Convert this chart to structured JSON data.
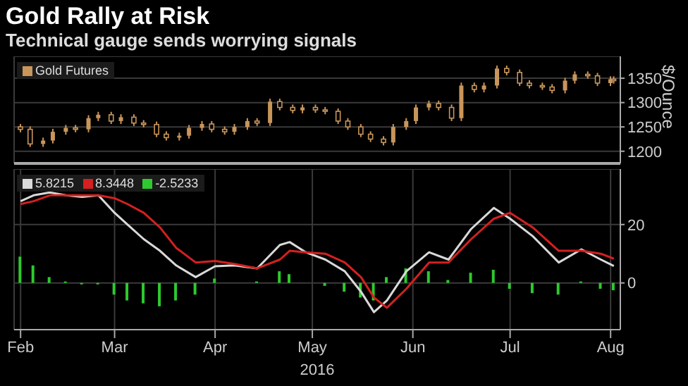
{
  "chart_data": [
    {
      "type": "candlestick",
      "title": "Gold Rally at Risk",
      "subtitle": "Technical gauge sends worrying signals",
      "ylabel": "$/Ounce",
      "x": [
        "2016-02-01",
        "2016-02-04",
        "2016-02-08",
        "2016-02-11",
        "2016-02-15",
        "2016-02-18",
        "2016-02-22",
        "2016-02-25",
        "2016-02-29",
        "2016-03-03",
        "2016-03-07",
        "2016-03-10",
        "2016-03-14",
        "2016-03-17",
        "2016-03-21",
        "2016-03-24",
        "2016-03-28",
        "2016-03-31",
        "2016-04-04",
        "2016-04-07",
        "2016-04-11",
        "2016-04-14",
        "2016-04-18",
        "2016-04-21",
        "2016-04-25",
        "2016-04-28",
        "2016-05-02",
        "2016-05-05",
        "2016-05-09",
        "2016-05-12",
        "2016-05-16",
        "2016-05-19",
        "2016-05-23",
        "2016-05-26",
        "2016-05-30",
        "2016-06-02",
        "2016-06-06",
        "2016-06-09",
        "2016-06-13",
        "2016-06-16",
        "2016-06-20",
        "2016-06-23",
        "2016-06-27",
        "2016-06-30",
        "2016-07-04",
        "2016-07-07",
        "2016-07-11",
        "2016-07-14",
        "2016-07-18",
        "2016-07-21",
        "2016-07-25",
        "2016-07-28",
        "2016-08-01",
        "2016-08-02"
      ],
      "series": [
        {
          "name": "Gold Futures",
          "color": "#c8955a",
          "ohlc": [
            [
              1250,
              1256,
              1239,
              1245
            ],
            [
              1245,
              1251,
              1209,
              1215
            ],
            [
              1215,
              1228,
              1209,
              1222
            ],
            [
              1222,
              1246,
              1216,
              1240
            ],
            [
              1240,
              1254,
              1234,
              1248
            ],
            [
              1248,
              1254,
              1239,
              1245
            ],
            [
              1245,
              1274,
              1239,
              1268
            ],
            [
              1268,
              1281,
              1262,
              1275
            ],
            [
              1275,
              1281,
              1256,
              1262
            ],
            [
              1262,
              1276,
              1256,
              1270
            ],
            [
              1270,
              1276,
              1252,
              1258
            ],
            [
              1258,
              1264,
              1249,
              1255
            ],
            [
              1255,
              1261,
              1229,
              1235
            ],
            [
              1235,
              1241,
              1222,
              1228
            ],
            [
              1228,
              1238,
              1222,
              1232
            ],
            [
              1232,
              1254,
              1226,
              1248
            ],
            [
              1248,
              1262,
              1242,
              1256
            ],
            [
              1256,
              1262,
              1239,
              1245
            ],
            [
              1245,
              1251,
              1234,
              1240
            ],
            [
              1240,
              1256,
              1234,
              1250
            ],
            [
              1250,
              1268,
              1244,
              1262
            ],
            [
              1262,
              1268,
              1252,
              1258
            ],
            [
              1258,
              1308,
              1252,
              1302
            ],
            [
              1302,
              1308,
              1284,
              1290
            ],
            [
              1290,
              1296,
              1278,
              1284
            ],
            [
              1284,
              1296,
              1278,
              1290
            ],
            [
              1290,
              1296,
              1279,
              1285
            ],
            [
              1285,
              1291,
              1276,
              1282
            ],
            [
              1282,
              1288,
              1256,
              1262
            ],
            [
              1262,
              1268,
              1244,
              1250
            ],
            [
              1250,
              1256,
              1229,
              1235
            ],
            [
              1235,
              1241,
              1219,
              1225
            ],
            [
              1225,
              1231,
              1212,
              1218
            ],
            [
              1218,
              1256,
              1212,
              1250
            ],
            [
              1250,
              1268,
              1244,
              1262
            ],
            [
              1262,
              1296,
              1256,
              1290
            ],
            [
              1290,
              1304,
              1284,
              1298
            ],
            [
              1298,
              1304,
              1284,
              1290
            ],
            [
              1290,
              1296,
              1262,
              1268
            ],
            [
              1268,
              1341,
              1262,
              1335
            ],
            [
              1335,
              1341,
              1321,
              1327
            ],
            [
              1327,
              1341,
              1321,
              1335
            ],
            [
              1335,
              1376,
              1329,
              1370
            ],
            [
              1370,
              1376,
              1356,
              1362
            ],
            [
              1362,
              1368,
              1334,
              1340
            ],
            [
              1340,
              1346,
              1329,
              1335
            ],
            [
              1335,
              1341,
              1326,
              1332
            ],
            [
              1332,
              1338,
              1319,
              1325
            ],
            [
              1325,
              1351,
              1319,
              1345
            ],
            [
              1345,
              1364,
              1339,
              1358
            ],
            [
              1358,
              1364,
              1349,
              1355
            ],
            [
              1355,
              1361,
              1334,
              1340
            ],
            [
              1340,
              1354,
              1334,
              1348
            ],
            [
              1348,
              1354,
              1339,
              1345
            ]
          ]
        }
      ],
      "xlim": [
        "2016-01-30",
        "2016-08-04"
      ],
      "xticks": [
        {
          "value": "2016-02-01",
          "label": null
        },
        {
          "value": "2016-03-01",
          "label": null
        },
        {
          "value": "2016-04-01",
          "label": null
        },
        {
          "value": "2016-05-01",
          "label": null
        },
        {
          "value": "2016-06-01",
          "label": null
        },
        {
          "value": "2016-07-01",
          "label": null
        },
        {
          "value": "2016-08-01",
          "label": null
        }
      ],
      "ylim": [
        1175,
        1395
      ],
      "yticks": [
        1200,
        1250,
        1300,
        1350
      ],
      "tick_labels": "y",
      "grid": true,
      "legend": "top left"
    },
    {
      "type": "line",
      "xlabel": "2016",
      "x": [
        "2016-02-01",
        "2016-02-05",
        "2016-02-10",
        "2016-02-15",
        "2016-02-20",
        "2016-02-25",
        "2016-03-01",
        "2016-03-05",
        "2016-03-10",
        "2016-03-15",
        "2016-03-20",
        "2016-03-26",
        "2016-04-01",
        "2016-04-07",
        "2016-04-14",
        "2016-04-21",
        "2016-04-24",
        "2016-04-29",
        "2016-05-05",
        "2016-05-11",
        "2016-05-16",
        "2016-05-20",
        "2016-05-24",
        "2016-05-30",
        "2016-06-06",
        "2016-06-12",
        "2016-06-19",
        "2016-06-26",
        "2016-07-01",
        "2016-07-08",
        "2016-07-16",
        "2016-07-23",
        "2016-07-29",
        "2016-08-02"
      ],
      "series": [
        {
          "name": "5.8215",
          "color": "#d9d9d9",
          "values": [
            28,
            30,
            31,
            30,
            29.5,
            30,
            24,
            20,
            15,
            11,
            6,
            2,
            5.7,
            6,
            5,
            13,
            14,
            10.5,
            8,
            4,
            -3,
            -10,
            -6,
            4,
            10.5,
            8,
            18.5,
            25.7,
            22,
            16,
            7,
            11.5,
            8,
            5.8
          ]
        },
        {
          "name": "8.3448",
          "color": "#d42020",
          "values": [
            27,
            28,
            30,
            30,
            30,
            30,
            29,
            27,
            24,
            19,
            12,
            7,
            7.5,
            6.5,
            5,
            8,
            11,
            10.5,
            10,
            7,
            2,
            -5,
            -8.5,
            -2,
            7,
            7,
            15,
            22,
            24,
            19,
            11,
            11,
            10,
            8.3
          ]
        },
        {
          "name": "-2.5233",
          "color": "#2ec92e",
          "type": "bar",
          "values": [
            9,
            6,
            2,
            0.5,
            -0.5,
            -0.5,
            -4,
            -6,
            -7,
            -8,
            -6,
            -4,
            1.5,
            0,
            0.5,
            4,
            3,
            0,
            -1,
            -3,
            -5,
            -6,
            2,
            5,
            4,
            1,
            3.5,
            4.5,
            -2,
            -3.5,
            -4,
            0.5,
            -2,
            -2.5
          ]
        }
      ],
      "xlim": [
        "2016-01-30",
        "2016-08-04"
      ],
      "xticks": [
        {
          "value": "2016-02-01",
          "label": "Feb"
        },
        {
          "value": "2016-03-01",
          "label": "Mar"
        },
        {
          "value": "2016-04-01",
          "label": "Apr"
        },
        {
          "value": "2016-05-01",
          "label": "May"
        },
        {
          "value": "2016-06-01",
          "label": "Jun"
        },
        {
          "value": "2016-07-01",
          "label": "Jul"
        },
        {
          "value": "2016-08-01",
          "label": "Aug"
        }
      ],
      "ylim": [
        -16,
        39
      ],
      "yticks": [
        0,
        20
      ],
      "grid": true,
      "legend": "top left",
      "marker": "none",
      "line_style": "solid"
    }
  ]
}
